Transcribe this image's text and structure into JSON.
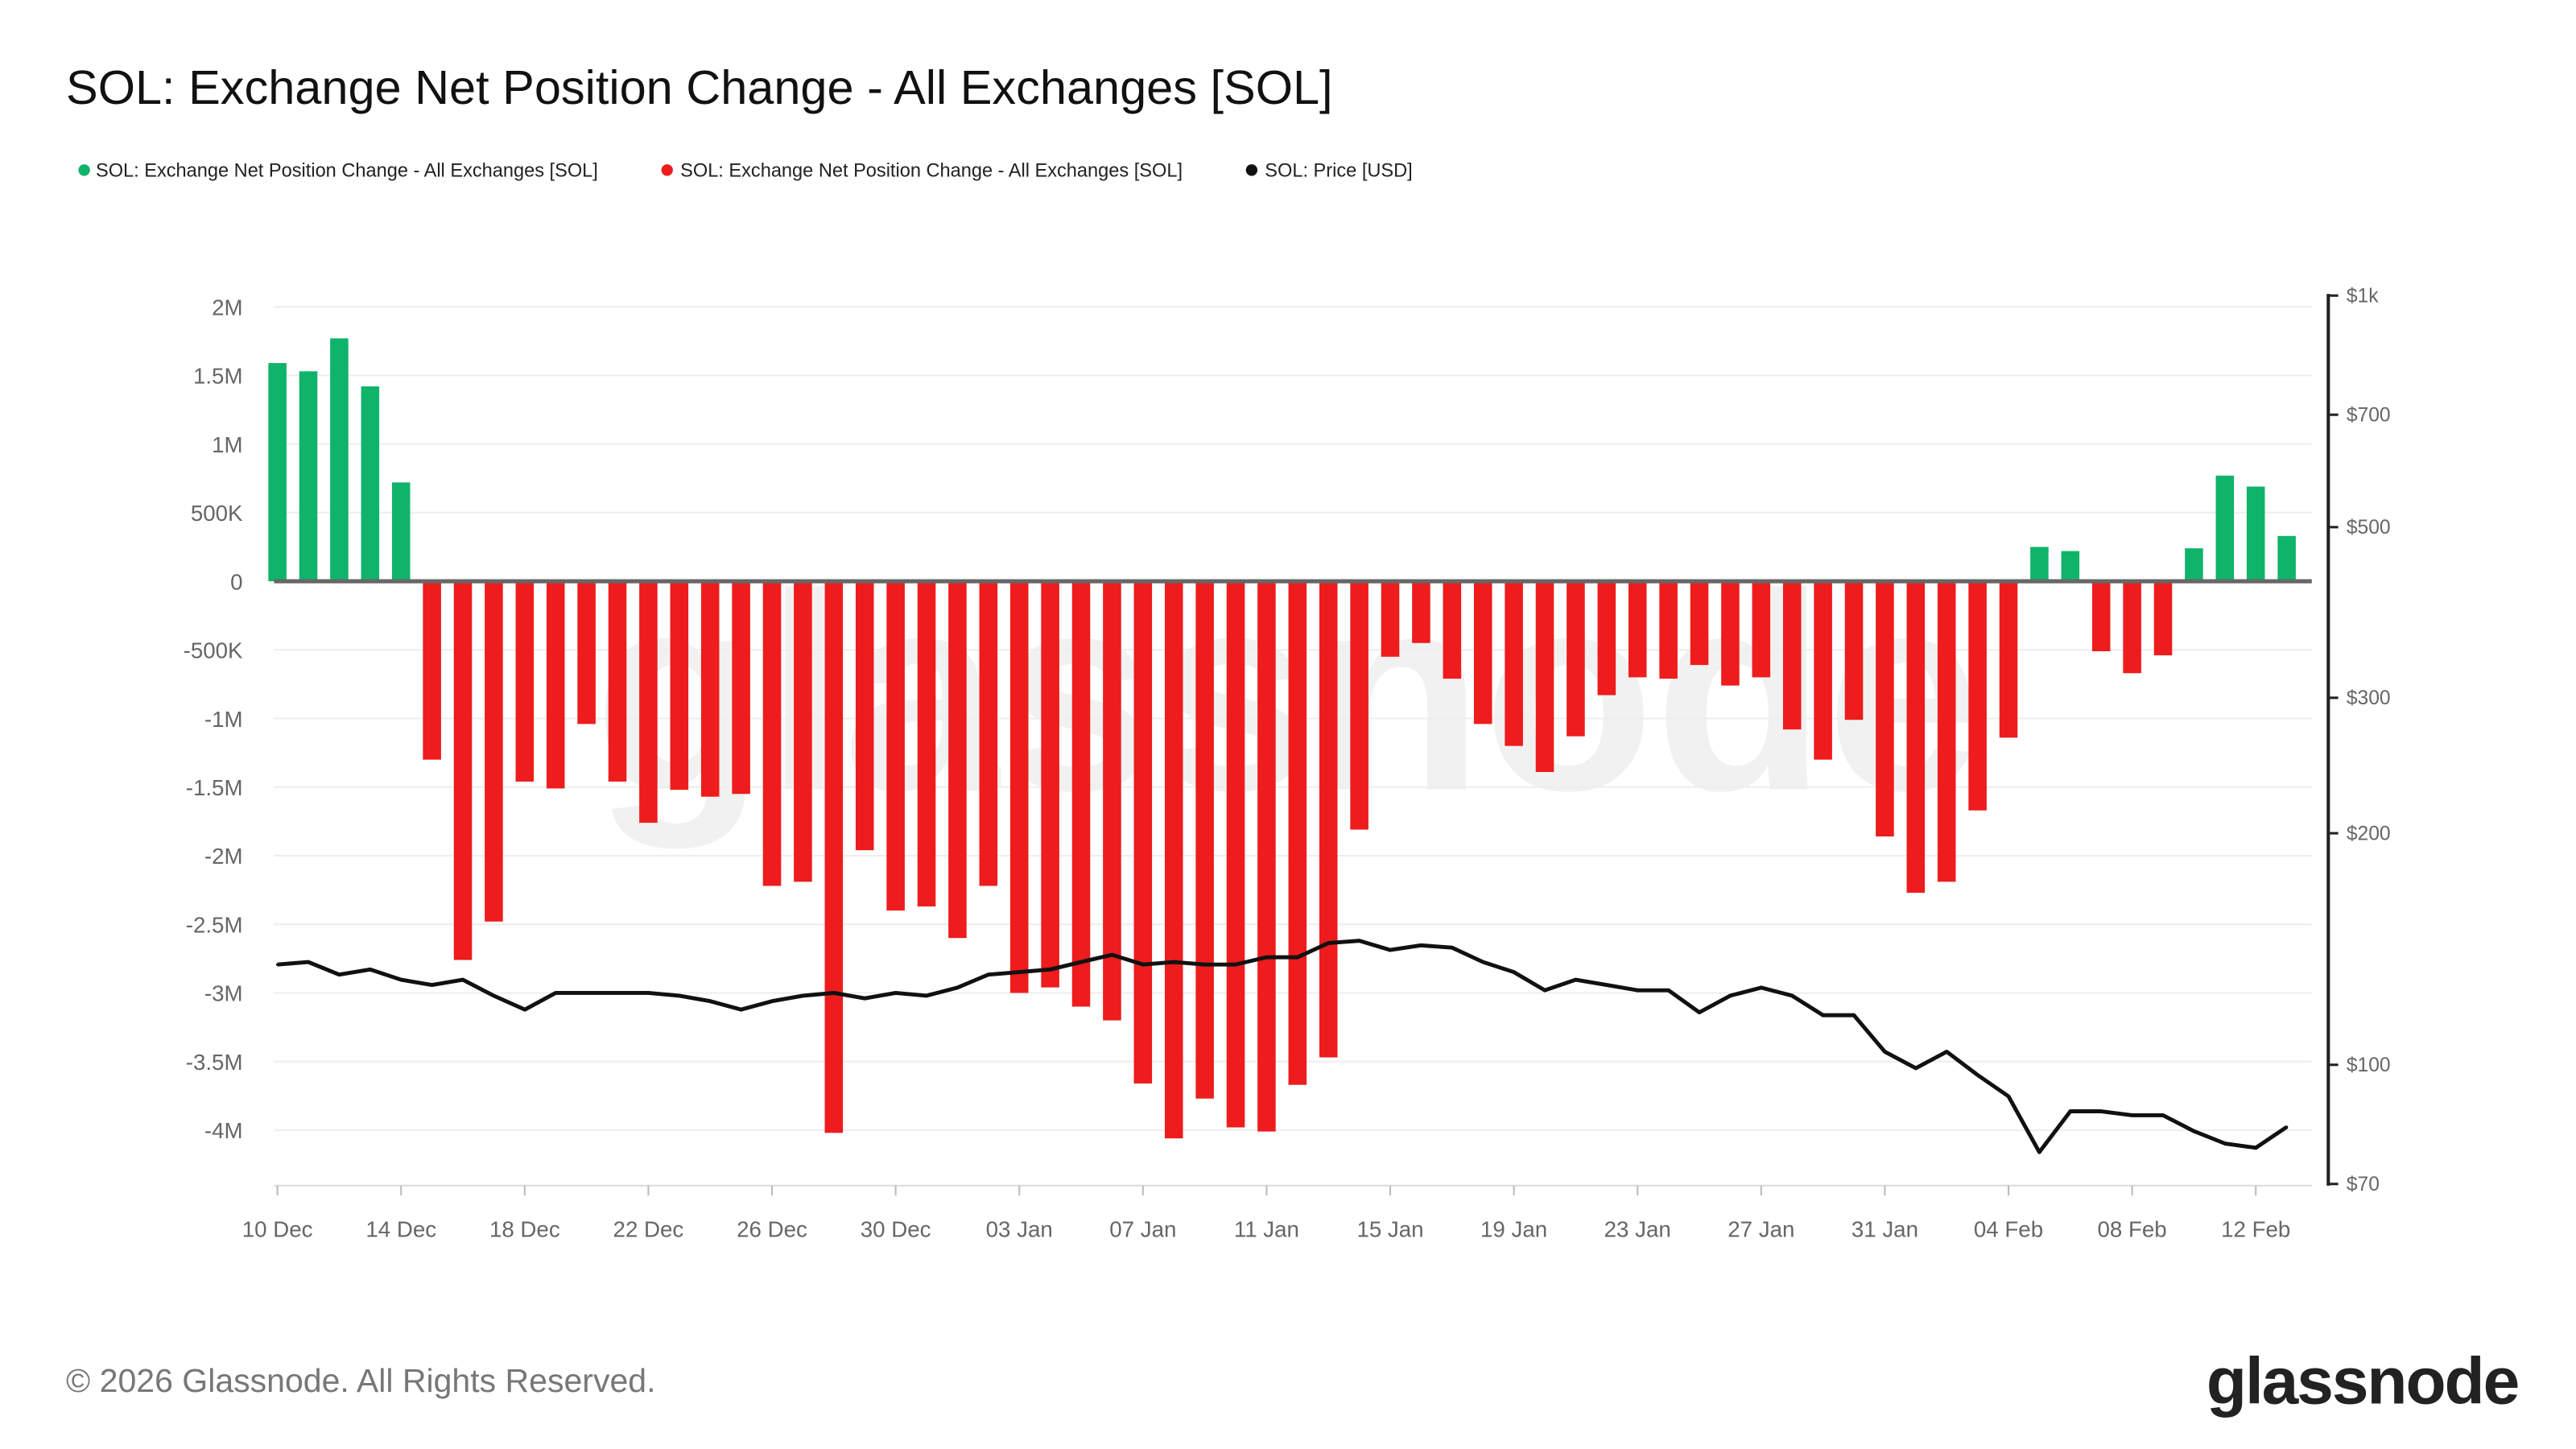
{
  "chart_data": {
    "type": "bar",
    "title": "SOL: Exchange Net Position Change - All Exchanges [SOL]",
    "legend": [
      {
        "label": "SOL: Exchange Net Position Change - All Exchanges [SOL]",
        "color": "#0fb36a"
      },
      {
        "label": "SOL: Exchange Net Position Change - All Exchanges [SOL]",
        "color": "#ee1c1c"
      },
      {
        "label": "SOL: Price [USD]",
        "color": "#111111"
      }
    ],
    "legend_placement": "top-left",
    "grid": true,
    "colors": {
      "positive": "#0fb36a",
      "negative": "#ee1c1c",
      "price": "#111111"
    },
    "x_tick_labels": [
      "10 Dec",
      "14 Dec",
      "18 Dec",
      "22 Dec",
      "26 Dec",
      "30 Dec",
      "03 Jan",
      "07 Jan",
      "11 Jan",
      "15 Jan",
      "19 Jan",
      "23 Jan",
      "27 Jan",
      "31 Jan",
      "04 Feb",
      "08 Feb",
      "12 Feb"
    ],
    "y_left": {
      "ticks": [
        "2M",
        "1.5M",
        "1M",
        "500K",
        "0",
        "-500K",
        "-1M",
        "-1.5M",
        "-2M",
        "-2.5M",
        "-3M",
        "-3.5M",
        "-4M"
      ],
      "tick_values": [
        2000000,
        1500000,
        1000000,
        500000,
        0,
        -500000,
        -1000000,
        -1500000,
        -2000000,
        -2500000,
        -3000000,
        -3500000,
        -4000000
      ],
      "range": [
        -4400000,
        2000000
      ]
    },
    "y_right": {
      "scale": "log",
      "ticks": [
        "$1k",
        "$700",
        "$500",
        "$300",
        "$200",
        "$100",
        "$70"
      ],
      "tick_values": [
        1000,
        700,
        500,
        300,
        200,
        100,
        70
      ],
      "range": [
        70,
        1000
      ]
    },
    "x": [
      "10 Dec",
      "11 Dec",
      "12 Dec",
      "13 Dec",
      "14 Dec",
      "15 Dec",
      "16 Dec",
      "17 Dec",
      "18 Dec",
      "19 Dec",
      "20 Dec",
      "21 Dec",
      "22 Dec",
      "23 Dec",
      "24 Dec",
      "25 Dec",
      "26 Dec",
      "27 Dec",
      "28 Dec",
      "29 Dec",
      "30 Dec",
      "31 Dec",
      "01 Jan",
      "02 Jan",
      "03 Jan",
      "04 Jan",
      "05 Jan",
      "06 Jan",
      "07 Jan",
      "08 Jan",
      "09 Jan",
      "10 Jan",
      "11 Jan",
      "12 Jan",
      "13 Jan",
      "14 Jan",
      "15 Jan",
      "16 Jan",
      "17 Jan",
      "18 Jan",
      "19 Jan",
      "20 Jan",
      "21 Jan",
      "22 Jan",
      "23 Jan",
      "24 Jan",
      "25 Jan",
      "26 Jan",
      "27 Jan",
      "28 Jan",
      "29 Jan",
      "30 Jan",
      "31 Jan",
      "01 Feb",
      "02 Feb",
      "03 Feb",
      "04 Feb",
      "05 Feb",
      "06 Feb",
      "07 Feb",
      "08 Feb",
      "09 Feb",
      "10 Feb",
      "11 Feb",
      "12 Feb",
      "13 Feb"
    ],
    "series": [
      {
        "name": "SOL: Exchange Net Position Change - All Exchanges [SOL]",
        "values": [
          1590000,
          1530000,
          1770000,
          1420000,
          720000,
          -1300000,
          -2760000,
          -2480000,
          -1460000,
          -1510000,
          -1040000,
          -1460000,
          -1760000,
          -1520000,
          -1570000,
          -1550000,
          -2220000,
          -2190000,
          -4020000,
          -1960000,
          -2400000,
          -2370000,
          -2600000,
          -2220000,
          -3000000,
          -2960000,
          -3100000,
          -3200000,
          -3660000,
          -4060000,
          -3770000,
          -3980000,
          -4010000,
          -3670000,
          -3470000,
          -1810000,
          -550000,
          -450000,
          -710000,
          -1040000,
          -1200000,
          -1390000,
          -1130000,
          -830000,
          -700000,
          -710000,
          -610000,
          -760000,
          -700000,
          -1080000,
          -1300000,
          -1010000,
          -1860000,
          -2270000,
          -2190000,
          -1670000,
          -1140000,
          250000,
          220000,
          -510000,
          -670000,
          -540000,
          240000,
          770000,
          690000,
          330000
        ]
      },
      {
        "name": "SOL: Price [USD]",
        "values": [
          135,
          136,
          131,
          133,
          129,
          127,
          129,
          123,
          118,
          124,
          124,
          124,
          124,
          123,
          121,
          118,
          121,
          123,
          124,
          122,
          124,
          123,
          126,
          131,
          132,
          133,
          136,
          139,
          135,
          136,
          135,
          135,
          138,
          138,
          144,
          145,
          141,
          143,
          142,
          136,
          132,
          125,
          129,
          127,
          125,
          125,
          117,
          123,
          126,
          123,
          116,
          116,
          104,
          99,
          104,
          97,
          91,
          77,
          87,
          87,
          86,
          86,
          82,
          79,
          78,
          83
        ]
      }
    ]
  },
  "footer": {
    "copyright": "© 2026 Glassnode. All Rights Reserved.",
    "logo": "glassnode",
    "watermark": "glassnode"
  }
}
